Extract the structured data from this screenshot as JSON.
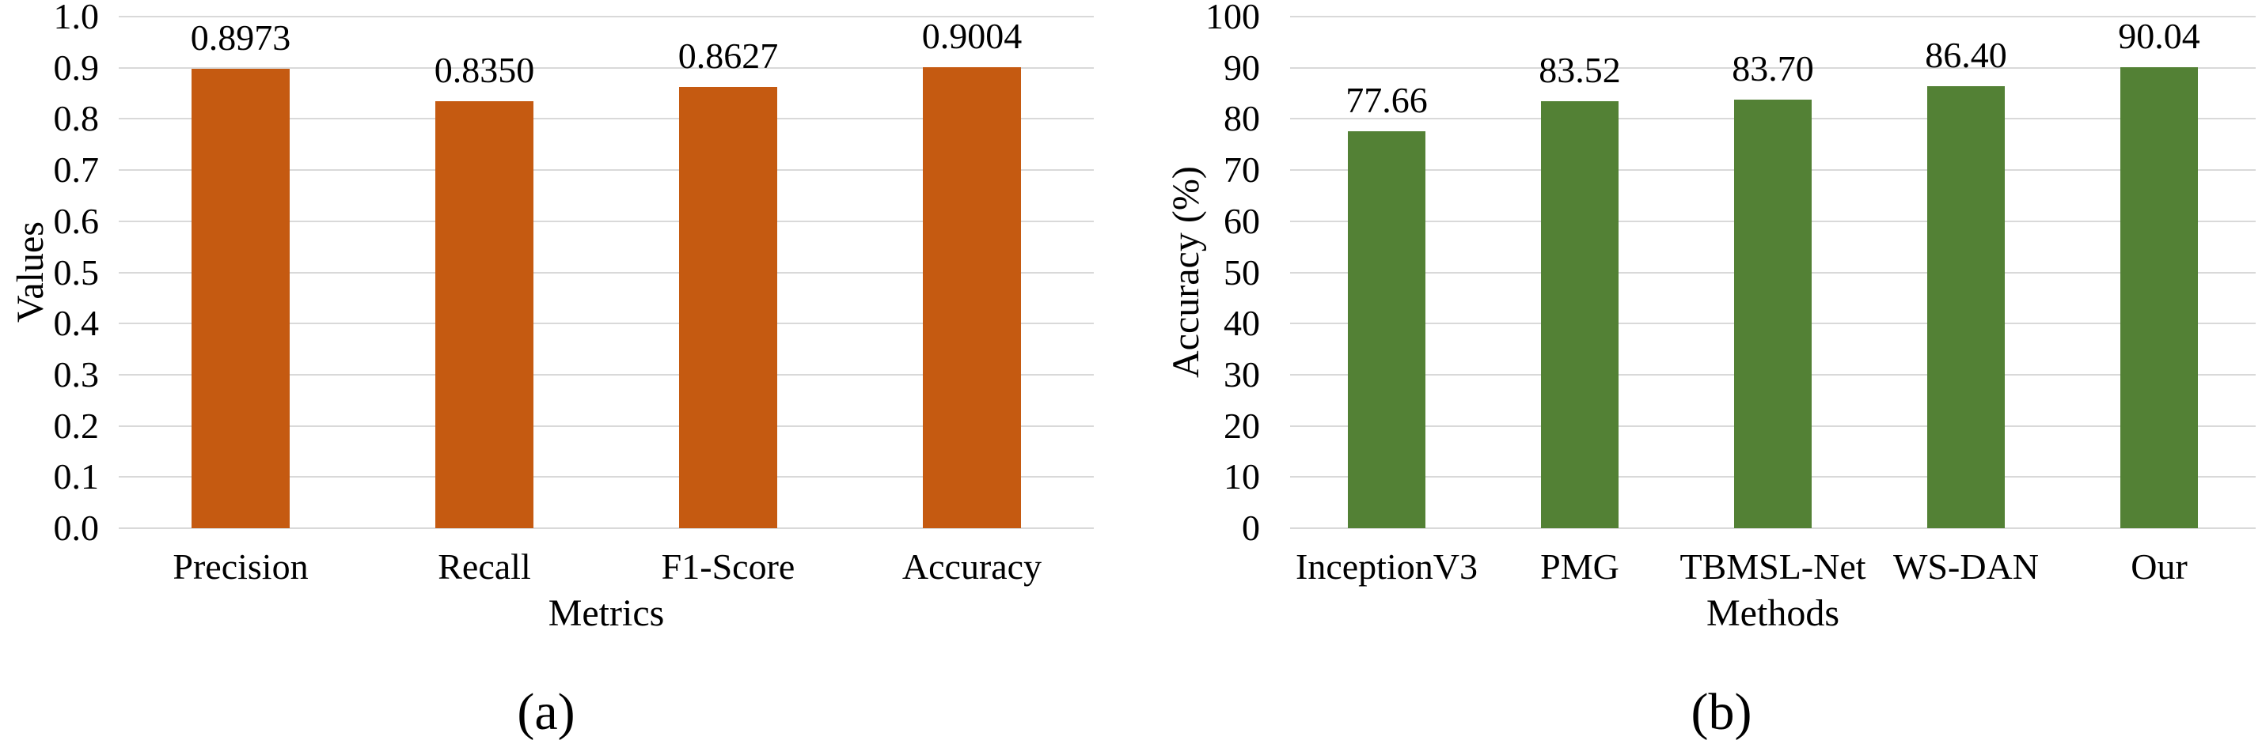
{
  "figure": {
    "background": "#ffffff",
    "grid_color": "#d9d9d9",
    "text_color": "#000000"
  },
  "chart_data": [
    {
      "type": "bar",
      "caption": "(a)",
      "title": "",
      "xlabel": "Metrics",
      "ylabel": "Values",
      "categories": [
        "Precision",
        "Recall",
        "F1-Score",
        "Accuracy"
      ],
      "values": [
        0.8973,
        0.835,
        0.8627,
        0.9004
      ],
      "value_labels": [
        "0.8973",
        "0.8350",
        "0.8627",
        "0.9004"
      ],
      "ylim": [
        0,
        1.0
      ],
      "ytick_labels": [
        "0.0",
        "0.1",
        "0.2",
        "0.3",
        "0.4",
        "0.5",
        "0.6",
        "0.7",
        "0.8",
        "0.9",
        "1.0"
      ],
      "bar_color": "#c55a11",
      "grid": true,
      "legend_position": "none"
    },
    {
      "type": "bar",
      "caption": "(b)",
      "title": "",
      "xlabel": "Methods",
      "ylabel": "Accuracy (%)",
      "categories": [
        "InceptionV3",
        "PMG",
        "TBMSL-Net",
        "WS-DAN",
        "Our"
      ],
      "values": [
        77.66,
        83.52,
        83.7,
        86.4,
        90.04
      ],
      "value_labels": [
        "77.66",
        "83.52",
        "83.70",
        "86.40",
        "90.04"
      ],
      "ylim": [
        0,
        100
      ],
      "ytick_labels": [
        "0",
        "10",
        "20",
        "30",
        "40",
        "50",
        "60",
        "70",
        "80",
        "90",
        "100"
      ],
      "bar_color": "#538135",
      "grid": true,
      "legend_position": "none"
    }
  ]
}
